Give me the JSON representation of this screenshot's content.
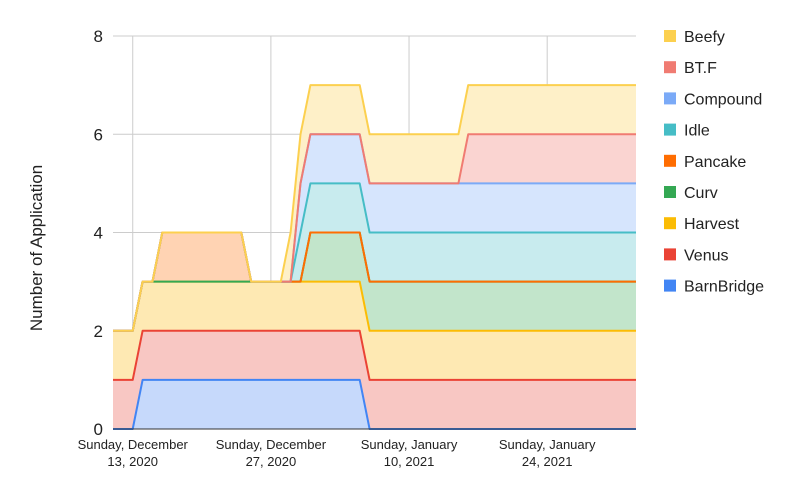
{
  "chart_data": {
    "type": "area",
    "stacked": true,
    "title": "",
    "xlabel": "",
    "ylabel": "Number of Application",
    "ylim": [
      0,
      8
    ],
    "yticks": [
      0,
      2,
      4,
      6,
      8
    ],
    "xlim": [
      "2020-12-11",
      "2021-02-02"
    ],
    "xtick_labels": [
      {
        "date": "2020-12-13",
        "lines": [
          "Sunday, December",
          "13, 2020"
        ]
      },
      {
        "date": "2020-12-27",
        "lines": [
          "Sunday, December",
          "27, 2020"
        ]
      },
      {
        "date": "2021-01-10",
        "lines": [
          "Sunday, January",
          "10, 2021"
        ]
      },
      {
        "date": "2021-01-24",
        "lines": [
          "Sunday, January",
          "24, 2021"
        ]
      }
    ],
    "grid": true,
    "legend_position": "right",
    "x": [
      "2020-12-11",
      "2020-12-13",
      "2020-12-14",
      "2020-12-15",
      "2020-12-16",
      "2020-12-24",
      "2020-12-25",
      "2020-12-28",
      "2020-12-29",
      "2020-12-30",
      "2020-12-31",
      "2021-01-05",
      "2021-01-06",
      "2021-01-07",
      "2021-01-15",
      "2021-01-16",
      "2021-01-30",
      "2021-01-31",
      "2021-02-02"
    ],
    "series": [
      {
        "name": "BarnBridge",
        "color": "#4285f4",
        "fill": "#c6d9fb",
        "values": [
          0,
          0,
          1,
          1,
          1,
          1,
          1,
          1,
          1,
          1,
          1,
          1,
          0,
          0,
          0,
          0,
          0,
          0,
          0
        ]
      },
      {
        "name": "Venus",
        "color": "#ea4335",
        "fill": "#f8c7c3",
        "values": [
          1,
          1,
          1,
          1,
          1,
          1,
          1,
          1,
          1,
          1,
          1,
          1,
          1,
          1,
          1,
          1,
          1,
          1,
          1
        ]
      },
      {
        "name": "Harvest",
        "color": "#fbbc04",
        "fill": "#fee9b3",
        "values": [
          1,
          1,
          1,
          1,
          1,
          1,
          1,
          1,
          1,
          1,
          1,
          1,
          1,
          1,
          1,
          1,
          1,
          1,
          1
        ]
      },
      {
        "name": "Curv",
        "color": "#34a853",
        "fill": "#c2e5cb",
        "values": [
          0,
          0,
          0,
          0,
          0,
          0,
          0,
          0,
          0,
          0,
          1,
          1,
          1,
          1,
          1,
          1,
          1,
          1,
          1
        ]
      },
      {
        "name": "Pancake",
        "color": "#ff6d01",
        "fill": "#ffd3b3",
        "values": [
          0,
          0,
          0,
          0,
          1,
          1,
          0,
          0,
          0,
          0,
          0,
          0,
          0,
          0,
          0,
          0,
          0,
          0,
          0
        ]
      },
      {
        "name": "Idle",
        "color": "#46bdc6",
        "fill": "#c8ebee",
        "values": [
          0,
          0,
          0,
          0,
          0,
          0,
          0,
          0,
          0,
          1,
          1,
          1,
          1,
          1,
          1,
          1,
          1,
          1,
          1
        ]
      },
      {
        "name": "Compound",
        "color": "#7baaf7",
        "fill": "#d6e5fd",
        "values": [
          0,
          0,
          0,
          0,
          0,
          0,
          0,
          0,
          0,
          1,
          1,
          1,
          1,
          1,
          1,
          1,
          1,
          1,
          1
        ]
      },
      {
        "name": "BT.F",
        "color": "#f07b72",
        "fill": "#fad4d1",
        "values": [
          0,
          0,
          0,
          0,
          0,
          0,
          0,
          0,
          0,
          0,
          0,
          0,
          0,
          0,
          0,
          1,
          1,
          1,
          1
        ]
      },
      {
        "name": "Beefy",
        "color": "#fcd04f",
        "fill": "#fef0c8",
        "values": [
          0,
          0,
          0,
          0,
          0,
          0,
          0,
          0,
          1,
          1,
          1,
          1,
          1,
          1,
          1,
          1,
          1,
          1,
          1
        ]
      }
    ],
    "legend_order": [
      "Beefy",
      "BT.F",
      "Compound",
      "Idle",
      "Pancake",
      "Curv",
      "Harvest",
      "Venus",
      "BarnBridge"
    ]
  }
}
